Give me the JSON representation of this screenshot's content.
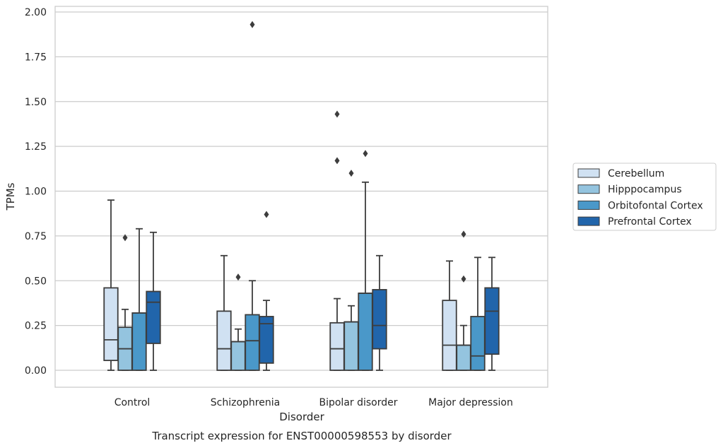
{
  "chart_data": {
    "type": "box",
    "title": "",
    "xlabel": "Disorder",
    "ylabel": "TPMs",
    "caption": "Transcript expression for ENST00000598553 by disorder",
    "ylim": [
      -0.095,
      2.03
    ],
    "yticks": [
      "0.00",
      "0.25",
      "0.50",
      "0.75",
      "1.00",
      "1.25",
      "1.50",
      "1.75",
      "2.00"
    ],
    "grid": true,
    "legend_position": "right",
    "categories": [
      "Control",
      "Schizophrenia",
      "Bipolar disorder",
      "Major depression"
    ],
    "series": [
      {
        "name": "Cerebellum",
        "color": "#d0e1f2",
        "boxes": [
          {
            "whislo": 0.0,
            "q1": 0.055,
            "med": 0.17,
            "q3": 0.46,
            "whishi": 0.95,
            "fliers": []
          },
          {
            "whislo": 0.0,
            "q1": 0.0,
            "med": 0.12,
            "q3": 0.33,
            "whishi": 0.64,
            "fliers": []
          },
          {
            "whislo": 0.0,
            "q1": 0.0,
            "med": 0.12,
            "q3": 0.265,
            "whishi": 0.4,
            "fliers": [
              1.43,
              1.17
            ]
          },
          {
            "whislo": 0.0,
            "q1": 0.0,
            "med": 0.14,
            "q3": 0.39,
            "whishi": 0.61,
            "fliers": []
          }
        ]
      },
      {
        "name": "Hipppocampus",
        "color": "#94c4df",
        "boxes": [
          {
            "whislo": 0.0,
            "q1": 0.0,
            "med": 0.12,
            "q3": 0.24,
            "whishi": 0.34,
            "fliers": [
              0.74
            ]
          },
          {
            "whislo": 0.0,
            "q1": 0.0,
            "med": 0.16,
            "q3": 0.16,
            "whishi": 0.23,
            "fliers": [
              0.52
            ]
          },
          {
            "whislo": 0.0,
            "q1": 0.0,
            "med": 0.27,
            "q3": 0.27,
            "whishi": 0.36,
            "fliers": [
              1.1
            ]
          },
          {
            "whislo": 0.0,
            "q1": 0.0,
            "med": 0.14,
            "q3": 0.14,
            "whishi": 0.25,
            "fliers": [
              0.76,
              0.51
            ]
          }
        ]
      },
      {
        "name": "Orbitofontal Cortex",
        "color": "#4a98c9",
        "boxes": [
          {
            "whislo": 0.0,
            "q1": 0.0,
            "med": 0.32,
            "q3": 0.32,
            "whishi": 0.79,
            "fliers": []
          },
          {
            "whislo": 0.0,
            "q1": 0.0,
            "med": 0.165,
            "q3": 0.31,
            "whishi": 0.5,
            "fliers": [
              1.93
            ]
          },
          {
            "whislo": 0.0,
            "q1": 0.0,
            "med": 0.43,
            "q3": 0.43,
            "whishi": 1.05,
            "fliers": [
              1.21
            ]
          },
          {
            "whislo": 0.0,
            "q1": 0.0,
            "med": 0.08,
            "q3": 0.3,
            "whishi": 0.63,
            "fliers": []
          }
        ]
      },
      {
        "name": "Prefrontal Cortex",
        "color": "#2165ab",
        "boxes": [
          {
            "whislo": 0.0,
            "q1": 0.15,
            "med": 0.38,
            "q3": 0.44,
            "whishi": 0.77,
            "fliers": []
          },
          {
            "whislo": 0.0,
            "q1": 0.04,
            "med": 0.26,
            "q3": 0.3,
            "whishi": 0.39,
            "fliers": [
              0.87
            ]
          },
          {
            "whislo": 0.0,
            "q1": 0.12,
            "med": 0.25,
            "q3": 0.45,
            "whishi": 0.64,
            "fliers": []
          },
          {
            "whislo": 0.0,
            "q1": 0.09,
            "med": 0.33,
            "q3": 0.46,
            "whishi": 0.63,
            "fliers": []
          }
        ]
      }
    ]
  }
}
